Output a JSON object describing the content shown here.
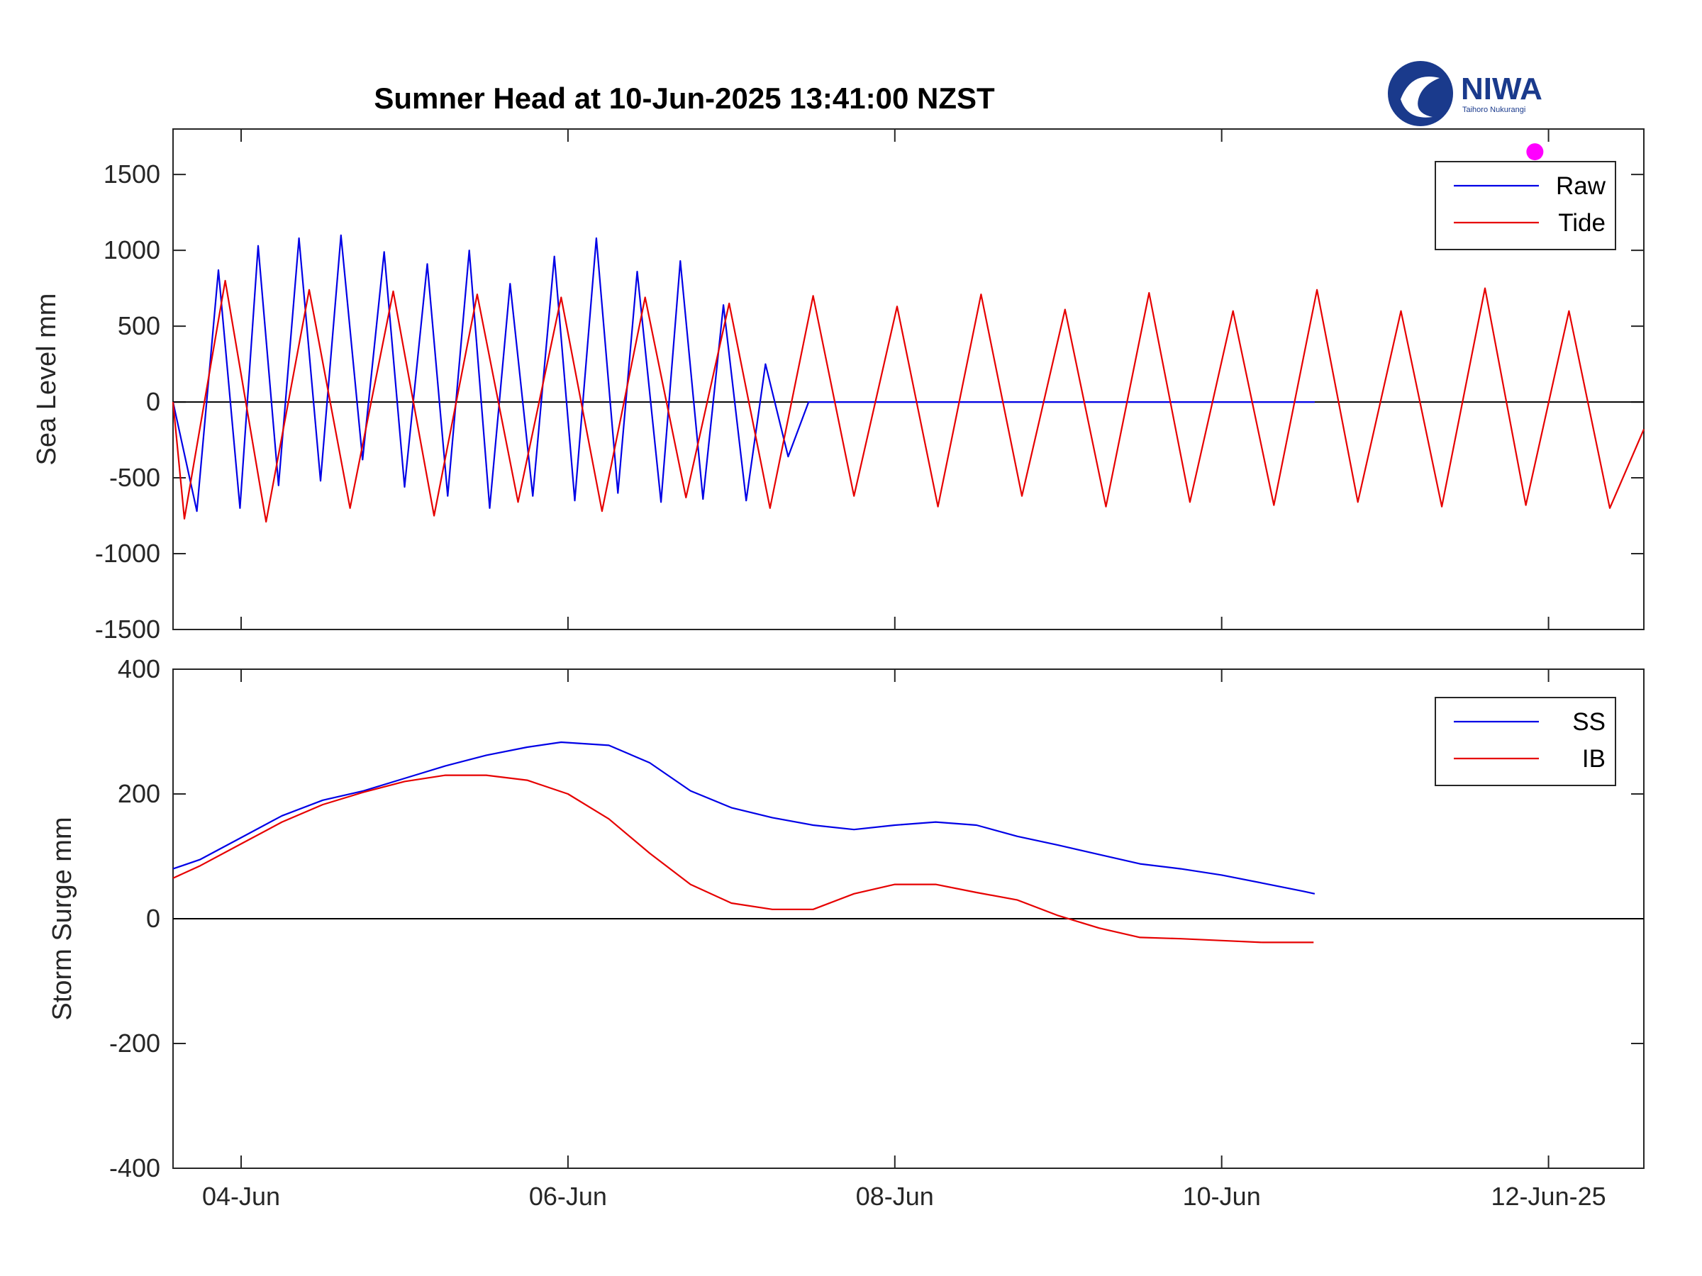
{
  "title": "Sumner Head at 10-Jun-2025 13:41:00 NZST",
  "logo": {
    "name": "NIWA",
    "subtitle": "Taihoro Nukurangi"
  },
  "colors": {
    "raw": "#0000e6",
    "tide": "#e60000",
    "ss": "#0000e6",
    "ib": "#e60000",
    "marker": "#ff00ff",
    "axis": "#262626",
    "logo": "#1a3a8c"
  },
  "x_ticks": [
    {
      "value": "2025-06-04",
      "label": "04-Jun"
    },
    {
      "value": "2025-06-06",
      "label": "06-Jun"
    },
    {
      "value": "2025-06-08",
      "label": "08-Jun"
    },
    {
      "value": "2025-06-10",
      "label": "10-Jun"
    },
    {
      "value": "2025-06-12",
      "label": "12-Jun-25"
    }
  ],
  "chart_data": [
    {
      "type": "line",
      "ylabel": "Sea Level mm",
      "xlim": [
        "2025-06-03 14:00",
        "2025-06-12 14:00"
      ],
      "ylim": [
        -1500,
        1800
      ],
      "yticks": [
        1500,
        1000,
        500,
        0,
        -500,
        -1000,
        -1500
      ],
      "ytick_labels": [
        "1500",
        "1000",
        "500",
        "0",
        "-500",
        "-1000",
        "-1500"
      ],
      "zero_line": true,
      "legend": {
        "position": "top-right",
        "entries": [
          "Raw",
          "Tide"
        ]
      },
      "marker": {
        "x": "2025-06-11 22:00",
        "y": 1650,
        "color": "#ff00ff"
      },
      "series": [
        {
          "name": "Raw",
          "color": "#0000e6",
          "x": [
            "2025-06-03 14:00",
            "2025-06-03 17:30",
            "2025-06-03 20:40",
            "2025-06-03 23:50",
            "2025-06-04 02:30",
            "2025-06-04 05:30",
            "2025-06-04 08:30",
            "2025-06-04 11:40",
            "2025-06-04 14:40",
            "2025-06-04 17:50",
            "2025-06-04 21:00",
            "2025-06-05 00:00",
            "2025-06-05 03:20",
            "2025-06-05 06:20",
            "2025-06-05 09:30",
            "2025-06-05 12:30",
            "2025-06-05 15:30",
            "2025-06-05 18:50",
            "2025-06-05 22:00",
            "2025-06-06 01:00",
            "2025-06-06 04:10",
            "2025-06-06 07:20",
            "2025-06-06 10:10",
            "2025-06-06 13:40",
            "2025-06-06 16:30",
            "2025-06-06 19:50",
            "2025-06-06 22:50",
            "2025-06-07 02:10",
            "2025-06-07 05:00",
            "2025-06-07 08:20",
            "2025-06-07 11:20",
            "2025-06-07 14:40",
            "2025-06-07 17:40",
            "2025-06-07 21:00",
            "2025-06-07 23:50",
            "2025-06-08 03:20",
            "2025-06-08 06:10",
            "2025-06-08 09:30",
            "2025-06-08 12:30",
            "2025-06-08 15:50",
            "2025-06-08 18:40",
            "2025-06-08 22:00",
            "2025-06-09 01:00",
            "2025-06-09 04:20",
            "2025-06-09 07:10",
            "2025-06-09 10:40",
            "2025-06-09 13:30",
            "2025-06-09 16:50",
            "2025-06-09 19:40",
            "2025-06-09 23:10",
            "2025-06-10 02:00",
            "2025-06-10 05:20",
            "2025-06-10 08:20",
            "2025-06-10 11:40",
            "2025-06-10 13:40"
          ],
          "y": [
            0,
            -720,
            870,
            -700,
            1030,
            -550,
            1080,
            -520,
            1100,
            -380,
            990,
            -560,
            910,
            -620,
            1000,
            -700,
            780,
            -620,
            960,
            -650,
            1080,
            -600,
            860,
            -660,
            930,
            -640,
            640,
            -650,
            250,
            -360,
            0,
            0,
            0,
            0,
            0,
            0,
            0,
            0,
            0,
            0,
            0,
            0,
            0,
            0,
            0,
            0,
            0,
            0,
            0,
            0,
            0,
            0,
            0,
            0,
            0
          ]
        },
        {
          "name": "Tide",
          "color": "#e60000",
          "x": [
            "2025-06-03 14:00",
            "2025-06-03 15:40",
            "2025-06-03 21:40",
            "2025-06-04 03:40",
            "2025-06-04 10:00",
            "2025-06-04 16:00",
            "2025-06-04 22:20",
            "2025-06-05 04:20",
            "2025-06-05 10:40",
            "2025-06-05 16:40",
            "2025-06-05 23:00",
            "2025-06-06 05:00",
            "2025-06-06 11:20",
            "2025-06-06 17:20",
            "2025-06-06 23:40",
            "2025-06-07 05:40",
            "2025-06-07 12:00",
            "2025-06-07 18:00",
            "2025-06-08 00:20",
            "2025-06-08 06:20",
            "2025-06-08 12:40",
            "2025-06-08 18:40",
            "2025-06-09 01:00",
            "2025-06-09 07:00",
            "2025-06-09 13:20",
            "2025-06-09 19:20",
            "2025-06-10 01:40",
            "2025-06-10 07:40",
            "2025-06-10 14:00",
            "2025-06-10 20:00",
            "2025-06-11 02:20",
            "2025-06-11 08:20",
            "2025-06-11 14:40",
            "2025-06-11 20:40",
            "2025-06-12 03:00",
            "2025-06-12 09:00",
            "2025-06-12 14:00"
          ],
          "y": [
            0,
            -770,
            800,
            -790,
            740,
            -700,
            730,
            -750,
            710,
            -660,
            690,
            -720,
            690,
            -630,
            650,
            -700,
            700,
            -620,
            630,
            -690,
            710,
            -620,
            610,
            -690,
            720,
            -660,
            600,
            -680,
            740,
            -660,
            600,
            -690,
            750,
            -680,
            600,
            -700,
            -180
          ]
        }
      ]
    },
    {
      "type": "line",
      "ylabel": "Storm Surge mm",
      "xlim": [
        "2025-06-03 14:00",
        "2025-06-12 14:00"
      ],
      "ylim": [
        -400,
        400
      ],
      "yticks": [
        400,
        200,
        0,
        -200,
        -400
      ],
      "ytick_labels": [
        "400",
        "200",
        "0",
        "-200",
        "-400"
      ],
      "zero_line": true,
      "legend": {
        "position": "top-right",
        "entries": [
          "SS",
          "IB"
        ]
      },
      "series": [
        {
          "name": "SS",
          "color": "#0000e6",
          "x": [
            "2025-06-03 14:00",
            "2025-06-03 18:00",
            "2025-06-04 00:00",
            "2025-06-04 06:00",
            "2025-06-04 12:00",
            "2025-06-04 18:00",
            "2025-06-05 00:00",
            "2025-06-05 06:00",
            "2025-06-05 12:00",
            "2025-06-05 18:00",
            "2025-06-05 23:00",
            "2025-06-06 06:00",
            "2025-06-06 12:00",
            "2025-06-06 18:00",
            "2025-06-07 00:00",
            "2025-06-07 06:00",
            "2025-06-07 12:00",
            "2025-06-07 18:00",
            "2025-06-08 00:00",
            "2025-06-08 06:00",
            "2025-06-08 12:00",
            "2025-06-08 18:00",
            "2025-06-09 00:00",
            "2025-06-09 06:00",
            "2025-06-09 12:00",
            "2025-06-09 18:00",
            "2025-06-10 00:00",
            "2025-06-10 06:00",
            "2025-06-10 12:00",
            "2025-06-10 13:40"
          ],
          "y": [
            80,
            95,
            130,
            165,
            190,
            205,
            225,
            245,
            262,
            275,
            283,
            278,
            250,
            205,
            178,
            162,
            150,
            143,
            150,
            155,
            150,
            132,
            118,
            103,
            88,
            80,
            70,
            57,
            44,
            40
          ]
        },
        {
          "name": "IB",
          "color": "#e60000",
          "x": [
            "2025-06-03 14:00",
            "2025-06-03 18:00",
            "2025-06-04 00:00",
            "2025-06-04 06:00",
            "2025-06-04 12:00",
            "2025-06-04 18:00",
            "2025-06-05 00:00",
            "2025-06-05 06:00",
            "2025-06-05 12:00",
            "2025-06-05 18:00",
            "2025-06-06 00:00",
            "2025-06-06 06:00",
            "2025-06-06 12:00",
            "2025-06-06 18:00",
            "2025-06-07 00:00",
            "2025-06-07 06:00",
            "2025-06-07 12:00",
            "2025-06-07 18:00",
            "2025-06-08 00:00",
            "2025-06-08 06:00",
            "2025-06-08 12:00",
            "2025-06-08 18:00",
            "2025-06-09 00:00",
            "2025-06-09 06:00",
            "2025-06-09 12:00",
            "2025-06-09 18:00",
            "2025-06-10 00:00",
            "2025-06-10 06:00",
            "2025-06-10 13:30"
          ],
          "y": [
            65,
            85,
            120,
            155,
            183,
            203,
            220,
            230,
            230,
            222,
            200,
            160,
            105,
            55,
            25,
            15,
            15,
            40,
            55,
            55,
            42,
            30,
            5,
            -15,
            -30,
            -32,
            -35,
            -38,
            -38
          ]
        }
      ]
    }
  ]
}
